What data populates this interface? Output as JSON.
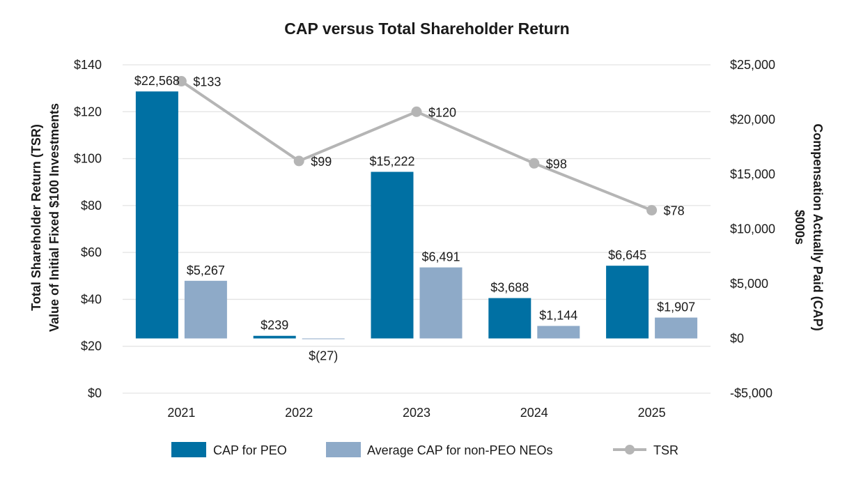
{
  "chart_data": {
    "type": "bar",
    "title": "CAP versus Total Shareholder Return",
    "categories": [
      "2021",
      "2022",
      "2023",
      "2024",
      "2025"
    ],
    "left_axis": {
      "label_line1": "Total Shareholder Return (TSR)",
      "label_line2": "Value of Initial Fixed $100 Investments",
      "ylim": [
        0,
        140
      ],
      "ticks": [
        0,
        20,
        40,
        60,
        80,
        100,
        120,
        140
      ],
      "tick_labels": [
        "$0",
        "$20",
        "$40",
        "$60",
        "$80",
        "$100",
        "$120",
        "$140"
      ]
    },
    "right_axis": {
      "label_line1": "Compensation Actually Paid (CAP)",
      "label_line2": "$000s",
      "ylim": [
        -5000,
        25000
      ],
      "ticks": [
        -5000,
        0,
        5000,
        10000,
        15000,
        20000,
        25000
      ],
      "tick_labels": [
        "-$5,000",
        "$0",
        "$5,000",
        "$10,000",
        "$15,000",
        "$20,000",
        "$25,000"
      ]
    },
    "series": [
      {
        "name": "CAP for PEO",
        "kind": "bar",
        "axis": "right",
        "color": "#0070a3",
        "values": [
          22568,
          239,
          15222,
          3688,
          6645
        ],
        "labels": [
          "$22,568",
          "$239",
          "$15,222",
          "$3,688",
          "$6,645"
        ]
      },
      {
        "name": "Average CAP for non-PEO NEOs",
        "kind": "bar",
        "axis": "right",
        "color": "#8eaac8",
        "values": [
          5267,
          -27,
          6491,
          1144,
          1907
        ],
        "labels": [
          "$5,267",
          "$(27)",
          "$6,491",
          "$1,144",
          "$1,907"
        ]
      },
      {
        "name": "TSR",
        "kind": "line",
        "axis": "left",
        "color": "#b5b5b5",
        "values": [
          133,
          99,
          120,
          98,
          78
        ],
        "labels": [
          "$133",
          "$99",
          "$120",
          "$98",
          "$78"
        ]
      }
    ],
    "grid": true,
    "legend_position": "bottom"
  }
}
